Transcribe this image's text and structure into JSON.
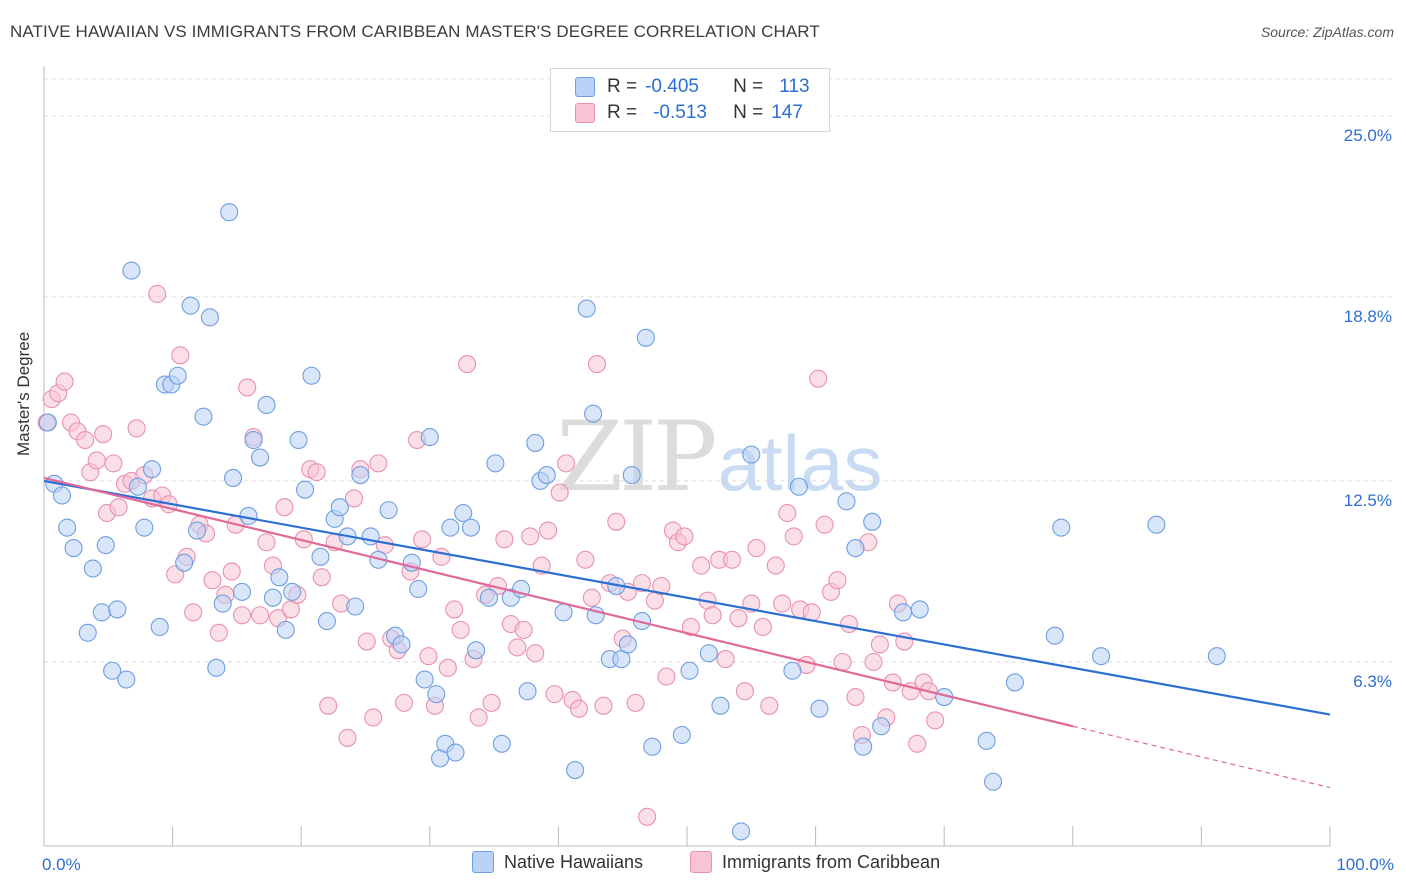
{
  "header": {
    "title": "NATIVE HAWAIIAN VS IMMIGRANTS FROM CARIBBEAN MASTER'S DEGREE CORRELATION CHART",
    "source": "Source: ZipAtlas.com"
  },
  "watermark": {
    "zip": "ZIP",
    "atlas": "atlas"
  },
  "colors": {
    "blue_fill": "#b9d2f5",
    "blue_stroke": "#6f9ee0",
    "blue_line": "#2c6fd4",
    "pink_fill": "#f8c4d4",
    "pink_stroke": "#e891b0",
    "pink_line": "#e0699a",
    "value_text": "#2c6fd4",
    "grid": "#dddddd"
  },
  "legend_top": {
    "rows": [
      {
        "r_label": "R =",
        "r_value": "-0.405",
        "n_label": "N =",
        "n_value": "113"
      },
      {
        "r_label": "R =",
        "r_value": "-0.513",
        "n_label": "N =",
        "n_value": "147"
      }
    ]
  },
  "chart_data": {
    "type": "scatter",
    "title": "NATIVE HAWAIIAN VS IMMIGRANTS FROM CARIBBEAN MASTER'S DEGREE CORRELATION CHART",
    "xlabel": "",
    "ylabel": "Master's Degree",
    "xlim": [
      0,
      100
    ],
    "ylim": [
      0,
      26.5
    ],
    "x_tick_labels": [
      "0.0%",
      "100.0%"
    ],
    "y_ticks": [
      6.3,
      12.5,
      18.8,
      25.0
    ],
    "y_tick_labels": [
      "6.3%",
      "12.5%",
      "18.8%",
      "25.0%"
    ],
    "legend": [
      "Native Hawaiians",
      "Immigrants from Caribbean"
    ],
    "series": [
      {
        "name": "Native Hawaiians",
        "trend": {
          "x": [
            0,
            100
          ],
          "y": [
            12.5,
            4.5
          ]
        },
        "points": [
          [
            0.3,
            14.5
          ],
          [
            0.8,
            12.4
          ],
          [
            1.4,
            12.0
          ],
          [
            1.8,
            10.9
          ],
          [
            2.3,
            10.2
          ],
          [
            3.4,
            7.3
          ],
          [
            3.8,
            9.5
          ],
          [
            4.5,
            8.0
          ],
          [
            4.8,
            10.3
          ],
          [
            5.3,
            6.0
          ],
          [
            5.7,
            8.1
          ],
          [
            6.4,
            5.7
          ],
          [
            6.8,
            19.7
          ],
          [
            7.3,
            12.3
          ],
          [
            7.8,
            10.9
          ],
          [
            8.4,
            12.9
          ],
          [
            9.0,
            7.5
          ],
          [
            9.4,
            15.8
          ],
          [
            9.9,
            15.8
          ],
          [
            10.4,
            16.1
          ],
          [
            10.9,
            9.7
          ],
          [
            11.4,
            18.5
          ],
          [
            11.9,
            10.8
          ],
          [
            12.4,
            14.7
          ],
          [
            12.9,
            18.1
          ],
          [
            13.4,
            6.1
          ],
          [
            13.9,
            8.3
          ],
          [
            14.4,
            21.7
          ],
          [
            14.7,
            12.6
          ],
          [
            15.4,
            8.7
          ],
          [
            15.9,
            11.3
          ],
          [
            16.3,
            13.9
          ],
          [
            16.8,
            13.3
          ],
          [
            17.3,
            15.1
          ],
          [
            17.8,
            8.5
          ],
          [
            18.3,
            9.2
          ],
          [
            18.8,
            7.4
          ],
          [
            19.3,
            8.7
          ],
          [
            19.8,
            13.9
          ],
          [
            20.3,
            12.2
          ],
          [
            20.8,
            16.1
          ],
          [
            21.5,
            9.9
          ],
          [
            22.0,
            7.7
          ],
          [
            22.6,
            11.2
          ],
          [
            23.0,
            11.6
          ],
          [
            23.6,
            10.6
          ],
          [
            24.2,
            8.2
          ],
          [
            24.6,
            12.7
          ],
          [
            25.4,
            10.6
          ],
          [
            26.0,
            9.8
          ],
          [
            26.8,
            11.5
          ],
          [
            27.3,
            7.2
          ],
          [
            27.8,
            6.9
          ],
          [
            28.6,
            9.7
          ],
          [
            29.1,
            8.8
          ],
          [
            29.6,
            5.7
          ],
          [
            30.0,
            14.0
          ],
          [
            30.5,
            5.2
          ],
          [
            30.8,
            3.0
          ],
          [
            31.6,
            10.9
          ],
          [
            31.2,
            3.5
          ],
          [
            32.0,
            3.2
          ],
          [
            32.6,
            11.4
          ],
          [
            33.2,
            10.9
          ],
          [
            33.6,
            6.7
          ],
          [
            34.6,
            8.5
          ],
          [
            35.1,
            13.1
          ],
          [
            35.6,
            3.5
          ],
          [
            36.3,
            8.5
          ],
          [
            37.1,
            8.8
          ],
          [
            37.6,
            5.3
          ],
          [
            38.2,
            13.8
          ],
          [
            38.6,
            12.5
          ],
          [
            39.1,
            12.7
          ],
          [
            40.4,
            8.0
          ],
          [
            41.3,
            2.6
          ],
          [
            42.2,
            18.4
          ],
          [
            42.7,
            14.8
          ],
          [
            42.9,
            7.9
          ],
          [
            44.0,
            6.4
          ],
          [
            44.5,
            8.9
          ],
          [
            44.9,
            6.4
          ],
          [
            45.4,
            6.9
          ],
          [
            45.7,
            12.7
          ],
          [
            46.5,
            7.7
          ],
          [
            46.8,
            17.4
          ],
          [
            47.3,
            3.4
          ],
          [
            49.6,
            3.8
          ],
          [
            50.2,
            6.0
          ],
          [
            51.7,
            6.6
          ],
          [
            52.6,
            4.8
          ],
          [
            54.2,
            0.5
          ],
          [
            55.0,
            13.4
          ],
          [
            58.2,
            6.0
          ],
          [
            58.7,
            12.3
          ],
          [
            60.3,
            4.7
          ],
          [
            62.4,
            11.8
          ],
          [
            63.1,
            10.2
          ],
          [
            63.7,
            3.4
          ],
          [
            64.4,
            11.1
          ],
          [
            65.1,
            4.1
          ],
          [
            66.8,
            8.0
          ],
          [
            68.1,
            8.1
          ],
          [
            70.0,
            5.1
          ],
          [
            73.3,
            3.6
          ],
          [
            73.8,
            2.2
          ],
          [
            75.5,
            5.6
          ],
          [
            78.6,
            7.2
          ],
          [
            79.1,
            10.9
          ],
          [
            82.2,
            6.5
          ],
          [
            86.5,
            11.0
          ],
          [
            91.2,
            6.5
          ]
        ]
      },
      {
        "name": "Immigrants from Caribbean",
        "trend": {
          "x": [
            0,
            80
          ],
          "y": [
            12.6,
            4.1
          ]
        },
        "trend_dashed": {
          "x": [
            80,
            100
          ],
          "y": [
            4.1,
            2.0
          ]
        },
        "points": [
          [
            0.2,
            14.5
          ],
          [
            0.6,
            15.3
          ],
          [
            1.1,
            15.5
          ],
          [
            1.6,
            15.9
          ],
          [
            2.1,
            14.5
          ],
          [
            2.6,
            14.2
          ],
          [
            3.2,
            13.9
          ],
          [
            3.6,
            12.8
          ],
          [
            4.1,
            13.2
          ],
          [
            4.6,
            14.1
          ],
          [
            4.9,
            11.4
          ],
          [
            5.4,
            13.1
          ],
          [
            5.8,
            11.6
          ],
          [
            6.3,
            12.4
          ],
          [
            6.8,
            12.5
          ],
          [
            7.2,
            14.3
          ],
          [
            7.8,
            12.7
          ],
          [
            8.4,
            11.9
          ],
          [
            8.8,
            18.9
          ],
          [
            9.2,
            12.0
          ],
          [
            9.7,
            11.7
          ],
          [
            10.2,
            9.3
          ],
          [
            10.6,
            16.8
          ],
          [
            11.1,
            9.9
          ],
          [
            11.6,
            8.0
          ],
          [
            12.1,
            11.0
          ],
          [
            12.6,
            10.7
          ],
          [
            13.1,
            9.1
          ],
          [
            13.6,
            7.3
          ],
          [
            14.1,
            8.6
          ],
          [
            14.6,
            9.4
          ],
          [
            14.9,
            11.0
          ],
          [
            15.4,
            7.9
          ],
          [
            15.8,
            15.7
          ],
          [
            16.3,
            14.0
          ],
          [
            16.8,
            7.9
          ],
          [
            17.3,
            10.4
          ],
          [
            17.8,
            9.6
          ],
          [
            18.2,
            7.8
          ],
          [
            18.7,
            11.6
          ],
          [
            19.2,
            8.1
          ],
          [
            19.7,
            8.6
          ],
          [
            20.2,
            10.5
          ],
          [
            20.7,
            12.9
          ],
          [
            21.2,
            12.8
          ],
          [
            21.6,
            9.2
          ],
          [
            22.1,
            4.8
          ],
          [
            22.6,
            10.4
          ],
          [
            23.1,
            8.3
          ],
          [
            23.6,
            3.7
          ],
          [
            24.1,
            11.9
          ],
          [
            24.6,
            12.9
          ],
          [
            25.1,
            7.0
          ],
          [
            25.6,
            4.4
          ],
          [
            26.0,
            13.1
          ],
          [
            26.5,
            10.3
          ],
          [
            27.0,
            7.1
          ],
          [
            27.5,
            6.7
          ],
          [
            28.0,
            4.9
          ],
          [
            28.5,
            9.4
          ],
          [
            29.0,
            13.9
          ],
          [
            29.4,
            10.5
          ],
          [
            29.9,
            6.5
          ],
          [
            30.4,
            4.8
          ],
          [
            30.9,
            9.9
          ],
          [
            31.4,
            6.1
          ],
          [
            31.9,
            8.1
          ],
          [
            32.4,
            7.4
          ],
          [
            32.9,
            16.5
          ],
          [
            33.4,
            6.4
          ],
          [
            33.8,
            4.4
          ],
          [
            34.3,
            8.6
          ],
          [
            34.8,
            4.9
          ],
          [
            35.3,
            8.9
          ],
          [
            35.8,
            10.5
          ],
          [
            36.3,
            7.6
          ],
          [
            36.8,
            6.8
          ],
          [
            37.3,
            7.4
          ],
          [
            37.8,
            10.6
          ],
          [
            38.2,
            6.6
          ],
          [
            38.7,
            9.6
          ],
          [
            39.2,
            10.8
          ],
          [
            39.7,
            5.2
          ],
          [
            40.1,
            12.1
          ],
          [
            40.6,
            13.1
          ],
          [
            41.1,
            5.0
          ],
          [
            41.6,
            4.7
          ],
          [
            42.1,
            9.8
          ],
          [
            42.6,
            8.5
          ],
          [
            43.0,
            16.5
          ],
          [
            43.5,
            4.8
          ],
          [
            44.0,
            9.0
          ],
          [
            44.5,
            11.1
          ],
          [
            45.0,
            7.1
          ],
          [
            45.4,
            8.7
          ],
          [
            46.0,
            4.9
          ],
          [
            46.5,
            9.0
          ],
          [
            46.9,
            1.0
          ],
          [
            47.5,
            8.4
          ],
          [
            48.0,
            8.9
          ],
          [
            48.4,
            5.8
          ],
          [
            48.9,
            10.8
          ],
          [
            49.3,
            10.4
          ],
          [
            49.8,
            10.6
          ],
          [
            50.3,
            7.5
          ],
          [
            51.1,
            9.6
          ],
          [
            51.6,
            8.4
          ],
          [
            52.0,
            7.9
          ],
          [
            52.5,
            9.8
          ],
          [
            53.0,
            6.4
          ],
          [
            53.5,
            9.8
          ],
          [
            54.0,
            7.8
          ],
          [
            54.5,
            5.3
          ],
          [
            55.0,
            8.3
          ],
          [
            55.4,
            10.2
          ],
          [
            55.9,
            7.5
          ],
          [
            56.4,
            4.8
          ],
          [
            56.9,
            9.6
          ],
          [
            57.4,
            8.3
          ],
          [
            57.8,
            11.4
          ],
          [
            58.3,
            10.6
          ],
          [
            58.8,
            8.1
          ],
          [
            59.3,
            6.2
          ],
          [
            59.7,
            8.0
          ],
          [
            60.2,
            16.0
          ],
          [
            60.7,
            11.0
          ],
          [
            61.2,
            8.7
          ],
          [
            61.7,
            9.1
          ],
          [
            62.1,
            6.3
          ],
          [
            62.6,
            7.6
          ],
          [
            63.1,
            5.1
          ],
          [
            63.6,
            3.8
          ],
          [
            64.1,
            10.4
          ],
          [
            64.5,
            6.3
          ],
          [
            65.0,
            6.9
          ],
          [
            65.5,
            4.4
          ],
          [
            66.0,
            5.6
          ],
          [
            66.4,
            8.3
          ],
          [
            66.9,
            7.0
          ],
          [
            67.4,
            5.3
          ],
          [
            67.9,
            3.5
          ],
          [
            68.4,
            5.6
          ],
          [
            68.8,
            5.3
          ],
          [
            69.3,
            4.3
          ]
        ]
      }
    ]
  }
}
